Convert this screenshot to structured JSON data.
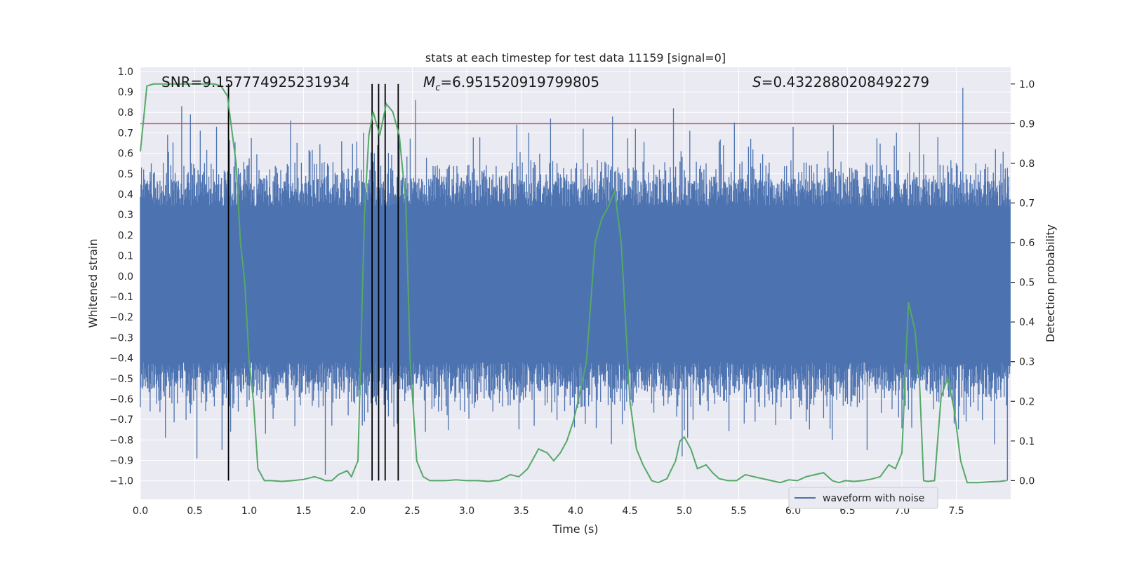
{
  "chart_data": {
    "type": "line",
    "title": "stats at each timestep for test data 11159 [signal=0]",
    "xlabel": "Time (s)",
    "ylabel_left": "Whitened strain",
    "ylabel_right": "Detection probability",
    "xlim": [
      0,
      8
    ],
    "ylim_left": [
      -1.09,
      1.02
    ],
    "ylim_right": [
      -0.047,
      1.042
    ],
    "x_ticks": [
      "0.0",
      "0.5",
      "1.0",
      "1.5",
      "2.0",
      "2.5",
      "3.0",
      "3.5",
      "4.0",
      "4.5",
      "5.0",
      "5.5",
      "6.0",
      "6.5",
      "7.0",
      "7.5"
    ],
    "y_left_ticks": [
      "1.0",
      "0.9",
      "0.8",
      "0.7",
      "0.6",
      "0.5",
      "0.4",
      "0.3",
      "0.2",
      "0.1",
      "0.0",
      "−0.1",
      "−0.2",
      "−0.3",
      "−0.4",
      "−0.5",
      "−0.6",
      "−0.7",
      "−0.8",
      "−0.9",
      "−1.0"
    ],
    "y_right_ticks": [
      "1.0",
      "0.9",
      "0.8",
      "0.7",
      "0.6",
      "0.5",
      "0.4",
      "0.3",
      "0.2",
      "0.1",
      "0.0"
    ],
    "annotations": {
      "snr": "SNR=9.157774925231934",
      "mc_symbol": "M",
      "mc_sub": "c",
      "mc_value": "=6.951520919799805",
      "s_symbol": "S",
      "s_value": "=0.4322880208492279"
    },
    "legend": {
      "label": "waveform with noise",
      "location": "lower-right"
    },
    "colors": {
      "waveform": "#4c72b0",
      "probability": "#55a868",
      "threshold": "#c44e52",
      "markers": "#000000",
      "background": "#eaeaf2",
      "grid": "#ffffff"
    },
    "threshold": 0.9,
    "vertical_markers": [
      0.81,
      2.13,
      2.19,
      2.25,
      2.37
    ],
    "series": [
      {
        "name": "waveform with noise",
        "axis": "left",
        "sample_interval": 0.01,
        "envelope_note": "dense noise, core band about -0.42..0.34, spikes up to 0.92 and down to -1.00",
        "peak_highs": [
          [
            0.25,
            0.69
          ],
          [
            0.38,
            0.83
          ],
          [
            0.46,
            0.79
          ],
          [
            0.55,
            0.71
          ],
          [
            0.7,
            0.73
          ],
          [
            1.38,
            0.76
          ],
          [
            2.05,
            0.7
          ],
          [
            2.18,
            0.64
          ],
          [
            2.53,
            0.86
          ],
          [
            3.46,
            0.74
          ],
          [
            3.57,
            0.7
          ],
          [
            3.77,
            0.77
          ],
          [
            4.07,
            0.72
          ],
          [
            4.34,
            0.78
          ],
          [
            4.55,
            0.72
          ],
          [
            4.9,
            0.82
          ],
          [
            5.05,
            0.71
          ],
          [
            5.46,
            0.75
          ],
          [
            6.0,
            0.73
          ],
          [
            6.37,
            0.74
          ],
          [
            6.95,
            0.7
          ],
          [
            7.16,
            0.75
          ],
          [
            7.33,
            0.68
          ],
          [
            7.56,
            0.92
          ],
          [
            7.86,
            0.62
          ]
        ],
        "peak_lows": [
          [
            0.02,
            -0.55
          ],
          [
            0.09,
            -0.66
          ],
          [
            0.23,
            -0.79
          ],
          [
            0.52,
            -0.89
          ],
          [
            0.75,
            -0.85
          ],
          [
            1.15,
            -0.77
          ],
          [
            1.7,
            -0.97
          ],
          [
            2.36,
            -0.72
          ],
          [
            2.62,
            -0.76
          ],
          [
            4.33,
            -0.82
          ],
          [
            4.98,
            -0.88
          ],
          [
            5.03,
            -0.79
          ],
          [
            5.55,
            -0.72
          ],
          [
            6.36,
            -0.8
          ],
          [
            6.68,
            -0.85
          ],
          [
            6.97,
            -0.69
          ],
          [
            7.09,
            -0.74
          ],
          [
            7.48,
            -0.72
          ],
          [
            7.85,
            -0.82
          ],
          [
            7.97,
            -1.0
          ]
        ]
      },
      {
        "name": "detection probability",
        "axis": "right",
        "x": [
          0.0,
          0.06,
          0.12,
          0.2,
          0.3,
          0.4,
          0.5,
          0.6,
          0.68,
          0.74,
          0.8,
          0.88,
          0.92,
          0.96,
          1.0,
          1.04,
          1.08,
          1.14,
          1.2,
          1.3,
          1.4,
          1.5,
          1.6,
          1.66,
          1.7,
          1.76,
          1.82,
          1.9,
          1.94,
          2.0,
          2.06,
          2.1,
          2.14,
          2.2,
          2.26,
          2.32,
          2.38,
          2.44,
          2.48,
          2.54,
          2.6,
          2.66,
          2.7,
          2.8,
          2.9,
          3.0,
          3.1,
          3.2,
          3.3,
          3.4,
          3.48,
          3.56,
          3.66,
          3.74,
          3.8,
          3.86,
          3.92,
          3.98,
          4.04,
          4.1,
          4.18,
          4.24,
          4.3,
          4.36,
          4.42,
          4.5,
          4.56,
          4.62,
          4.7,
          4.76,
          4.84,
          4.92,
          4.96,
          5.0,
          5.06,
          5.12,
          5.2,
          5.26,
          5.32,
          5.4,
          5.48,
          5.56,
          5.64,
          5.72,
          5.8,
          5.88,
          5.96,
          6.04,
          6.12,
          6.2,
          6.28,
          6.36,
          6.42,
          6.48,
          6.56,
          6.64,
          6.72,
          6.8,
          6.88,
          6.94,
          7.0,
          7.06,
          7.12,
          7.16,
          7.2,
          7.24,
          7.3,
          7.36,
          7.42,
          7.48,
          7.54,
          7.6,
          7.7,
          7.8,
          7.9,
          7.96
        ],
        "values": [
          0.83,
          0.995,
          1.0,
          1.0,
          1.0,
          1.0,
          1.0,
          1.0,
          1.0,
          0.995,
          0.97,
          0.8,
          0.6,
          0.5,
          0.3,
          0.2,
          0.03,
          0.0,
          0.0,
          -0.002,
          0.0,
          0.003,
          0.01,
          0.005,
          0.0,
          0.0,
          0.015,
          0.025,
          0.01,
          0.05,
          0.67,
          0.87,
          0.93,
          0.87,
          0.95,
          0.93,
          0.87,
          0.7,
          0.3,
          0.05,
          0.01,
          0.0,
          0.0,
          0.0,
          0.002,
          0.0,
          0.0,
          -0.002,
          0.001,
          0.015,
          0.01,
          0.03,
          0.08,
          0.07,
          0.05,
          0.07,
          0.1,
          0.15,
          0.22,
          0.3,
          0.6,
          0.66,
          0.69,
          0.73,
          0.6,
          0.2,
          0.08,
          0.04,
          0.0,
          -0.005,
          0.005,
          0.05,
          0.1,
          0.11,
          0.08,
          0.03,
          0.04,
          0.02,
          0.005,
          0.0,
          0.0,
          0.015,
          0.01,
          0.005,
          0.0,
          -0.005,
          0.002,
          0.0,
          0.01,
          0.015,
          0.02,
          0.0,
          -0.005,
          0.0,
          -0.002,
          0.0,
          0.004,
          0.01,
          0.04,
          0.03,
          0.07,
          0.45,
          0.38,
          0.26,
          0.0,
          -0.002,
          0.0,
          0.21,
          0.26,
          0.18,
          0.05,
          -0.005,
          -0.005,
          -0.003,
          -0.002,
          0.0
        ]
      }
    ]
  }
}
